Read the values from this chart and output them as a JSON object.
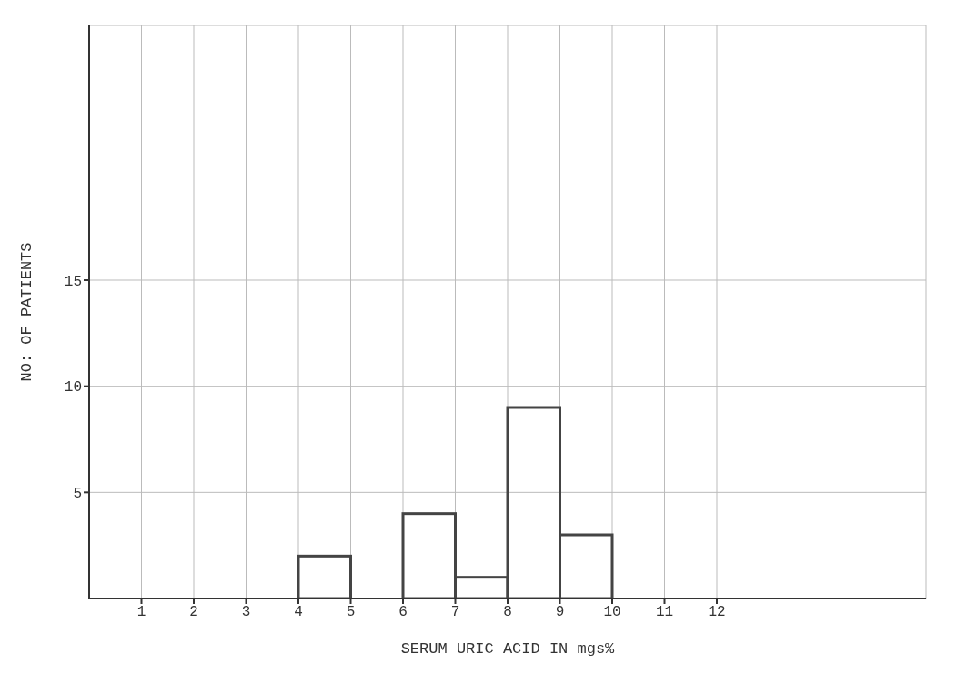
{
  "chart_data": {
    "type": "histogram",
    "xlabel": "SERUM URIC ACID IN mgs%",
    "ylabel": "NO: OF PATIENTS",
    "bins": [
      4,
      5,
      6,
      7,
      8,
      9,
      10
    ],
    "values": [
      2,
      0,
      4,
      1,
      9,
      3
    ],
    "color": "#444444",
    "xlim": [
      0,
      16
    ],
    "xticks": [
      1,
      2,
      3,
      4,
      5,
      6,
      7,
      8,
      9,
      10,
      11,
      12
    ],
    "ylim": [
      0,
      27
    ],
    "yticks": [
      5,
      10,
      15
    ],
    "grid": true
  }
}
